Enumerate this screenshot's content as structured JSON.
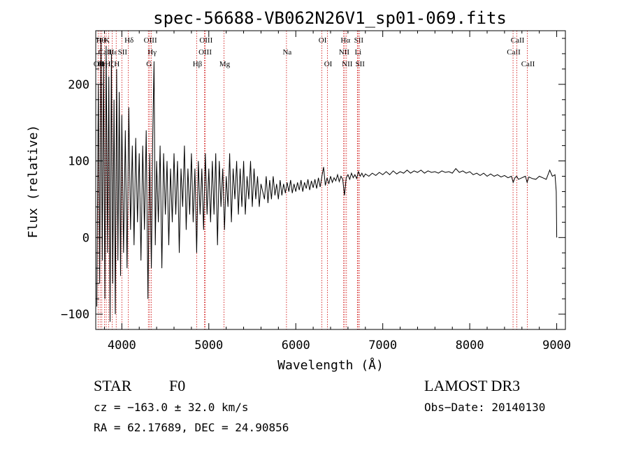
{
  "chart_data": {
    "type": "line",
    "title": "spec-56688-VB062N26V1_sp01-069.fits",
    "xlabel": "Wavelength (Å)",
    "ylabel": "Flux (relative)",
    "xlim": [
      3700,
      9100
    ],
    "ylim": [
      -120,
      270
    ],
    "x_ticks": [
      4000,
      5000,
      6000,
      7000,
      8000,
      9000
    ],
    "x_tick_labels": [
      "4000",
      "5000",
      "6000",
      "7000",
      "8000",
      "9000"
    ],
    "y_ticks": [
      -100,
      0,
      100,
      200
    ],
    "y_tick_labels": [
      "−100",
      "0",
      "100",
      "200"
    ],
    "grid": false,
    "line_color": "#000000",
    "marker_color": "#cc0000",
    "series": [
      {
        "name": "spectrum",
        "points": [
          [
            3712,
            -90
          ],
          [
            3730,
            200
          ],
          [
            3745,
            -60
          ],
          [
            3760,
            260
          ],
          [
            3775,
            -30
          ],
          [
            3790,
            230
          ],
          [
            3805,
            -80
          ],
          [
            3820,
            250
          ],
          [
            3835,
            -20
          ],
          [
            3850,
            210
          ],
          [
            3865,
            -110
          ],
          [
            3880,
            240
          ],
          [
            3895,
            -60
          ],
          [
            3910,
            180
          ],
          [
            3925,
            -100
          ],
          [
            3940,
            220
          ],
          [
            3955,
            -30
          ],
          [
            3970,
            190
          ],
          [
            3985,
            -50
          ],
          [
            4000,
            160
          ],
          [
            4020,
            -20
          ],
          [
            4040,
            140
          ],
          [
            4060,
            -40
          ],
          [
            4080,
            170
          ],
          [
            4100,
            10
          ],
          [
            4120,
            120
          ],
          [
            4140,
            -10
          ],
          [
            4160,
            130
          ],
          [
            4180,
            20
          ],
          [
            4200,
            110
          ],
          [
            4220,
            -30
          ],
          [
            4240,
            120
          ],
          [
            4260,
            10
          ],
          [
            4280,
            140
          ],
          [
            4300,
            -80
          ],
          [
            4320,
            110
          ],
          [
            4340,
            -40
          ],
          [
            4355,
            130
          ],
          [
            4370,
            230
          ],
          [
            4385,
            -10
          ],
          [
            4400,
            100
          ],
          [
            4420,
            20
          ],
          [
            4440,
            120
          ],
          [
            4460,
            -40
          ],
          [
            4480,
            110
          ],
          [
            4500,
            30
          ],
          [
            4520,
            100
          ],
          [
            4540,
            -10
          ],
          [
            4560,
            90
          ],
          [
            4580,
            20
          ],
          [
            4600,
            110
          ],
          [
            4620,
            30
          ],
          [
            4640,
            100
          ],
          [
            4660,
            -20
          ],
          [
            4680,
            90
          ],
          [
            4700,
            40
          ],
          [
            4720,
            120
          ],
          [
            4740,
            10
          ],
          [
            4760,
            90
          ],
          [
            4780,
            30
          ],
          [
            4800,
            110
          ],
          [
            4820,
            20
          ],
          [
            4840,
            90
          ],
          [
            4860,
            -20
          ],
          [
            4880,
            100
          ],
          [
            4900,
            30
          ],
          [
            4920,
            90
          ],
          [
            4940,
            10
          ],
          [
            4960,
            110
          ],
          [
            4980,
            30
          ],
          [
            5000,
            90
          ],
          [
            5020,
            20
          ],
          [
            5040,
            100
          ],
          [
            5060,
            30
          ],
          [
            5080,
            110
          ],
          [
            5100,
            -10
          ],
          [
            5120,
            100
          ],
          [
            5140,
            40
          ],
          [
            5160,
            90
          ],
          [
            5180,
            10
          ],
          [
            5200,
            80
          ],
          [
            5220,
            40
          ],
          [
            5240,
            110
          ],
          [
            5260,
            20
          ],
          [
            5280,
            90
          ],
          [
            5300,
            50
          ],
          [
            5320,
            100
          ],
          [
            5340,
            30
          ],
          [
            5360,
            90
          ],
          [
            5380,
            40
          ],
          [
            5400,
            100
          ],
          [
            5420,
            30
          ],
          [
            5440,
            80
          ],
          [
            5460,
            50
          ],
          [
            5480,
            100
          ],
          [
            5500,
            40
          ],
          [
            5520,
            90
          ],
          [
            5540,
            50
          ],
          [
            5560,
            80
          ],
          [
            5580,
            40
          ],
          [
            5600,
            70
          ],
          [
            5620,
            60
          ],
          [
            5640,
            50
          ],
          [
            5660,
            80
          ],
          [
            5680,
            45
          ],
          [
            5700,
            75
          ],
          [
            5720,
            50
          ],
          [
            5740,
            80
          ],
          [
            5760,
            55
          ],
          [
            5780,
            70
          ],
          [
            5800,
            50
          ],
          [
            5820,
            75
          ],
          [
            5840,
            55
          ],
          [
            5860,
            70
          ],
          [
            5880,
            58
          ],
          [
            5900,
            72
          ],
          [
            5920,
            60
          ],
          [
            5940,
            75
          ],
          [
            5960,
            58
          ],
          [
            5980,
            70
          ],
          [
            6000,
            60
          ],
          [
            6020,
            72
          ],
          [
            6040,
            62
          ],
          [
            6060,
            75
          ],
          [
            6080,
            60
          ],
          [
            6100,
            72
          ],
          [
            6120,
            64
          ],
          [
            6140,
            76
          ],
          [
            6160,
            62
          ],
          [
            6180,
            74
          ],
          [
            6200,
            65
          ],
          [
            6220,
            76
          ],
          [
            6240,
            64
          ],
          [
            6260,
            78
          ],
          [
            6280,
            66
          ],
          [
            6300,
            80
          ],
          [
            6320,
            92
          ],
          [
            6340,
            68
          ],
          [
            6360,
            78
          ],
          [
            6380,
            70
          ],
          [
            6400,
            80
          ],
          [
            6420,
            72
          ],
          [
            6440,
            78
          ],
          [
            6460,
            74
          ],
          [
            6480,
            82
          ],
          [
            6500,
            73
          ],
          [
            6520,
            80
          ],
          [
            6540,
            76
          ],
          [
            6560,
            55
          ],
          [
            6580,
            78
          ],
          [
            6600,
            82
          ],
          [
            6620,
            76
          ],
          [
            6640,
            84
          ],
          [
            6660,
            78
          ],
          [
            6680,
            82
          ],
          [
            6700,
            77
          ],
          [
            6720,
            86
          ],
          [
            6740,
            80
          ],
          [
            6760,
            84
          ],
          [
            6780,
            79
          ],
          [
            6800,
            83
          ],
          [
            6840,
            80
          ],
          [
            6880,
            84
          ],
          [
            6920,
            81
          ],
          [
            6960,
            85
          ],
          [
            7000,
            82
          ],
          [
            7040,
            86
          ],
          [
            7080,
            82
          ],
          [
            7120,
            87
          ],
          [
            7160,
            83
          ],
          [
            7200,
            86
          ],
          [
            7240,
            84
          ],
          [
            7280,
            88
          ],
          [
            7320,
            84
          ],
          [
            7360,
            87
          ],
          [
            7400,
            85
          ],
          [
            7440,
            88
          ],
          [
            7480,
            84
          ],
          [
            7520,
            87
          ],
          [
            7560,
            85
          ],
          [
            7600,
            86
          ],
          [
            7640,
            84
          ],
          [
            7680,
            87
          ],
          [
            7720,
            85
          ],
          [
            7760,
            86
          ],
          [
            7800,
            84
          ],
          [
            7840,
            90
          ],
          [
            7880,
            85
          ],
          [
            7920,
            87
          ],
          [
            7960,
            84
          ],
          [
            8000,
            86
          ],
          [
            8040,
            82
          ],
          [
            8080,
            84
          ],
          [
            8120,
            81
          ],
          [
            8160,
            84
          ],
          [
            8200,
            80
          ],
          [
            8240,
            83
          ],
          [
            8280,
            80
          ],
          [
            8320,
            82
          ],
          [
            8360,
            79
          ],
          [
            8400,
            81
          ],
          [
            8440,
            78
          ],
          [
            8480,
            80
          ],
          [
            8500,
            72
          ],
          [
            8520,
            78
          ],
          [
            8540,
            80
          ],
          [
            8560,
            76
          ],
          [
            8600,
            78
          ],
          [
            8640,
            80
          ],
          [
            8660,
            72
          ],
          [
            8680,
            79
          ],
          [
            8720,
            77
          ],
          [
            8760,
            76
          ],
          [
            8800,
            80
          ],
          [
            8840,
            78
          ],
          [
            8880,
            76
          ],
          [
            8920,
            88
          ],
          [
            8950,
            80
          ],
          [
            8980,
            82
          ],
          [
            8995,
            60
          ],
          [
            9000,
            0
          ]
        ]
      }
    ],
    "line_markers": [
      {
        "name": "OII",
        "x": 3727,
        "row": 3
      },
      {
        "name": "Hθ",
        "x": 3750,
        "row": 1
      },
      {
        "name": "Hη",
        "x": 3770,
        "row": 3
      },
      {
        "name": "CaII",
        "x": 3800,
        "row": 2
      },
      {
        "name": "K",
        "x": 3820,
        "row": 1
      },
      {
        "name": "Hζ",
        "x": 3850,
        "row": 3
      },
      {
        "name": "Hε",
        "x": 3890,
        "row": 2
      },
      {
        "name": "H",
        "x": 3935,
        "row": 3
      },
      {
        "name": "SII",
        "x": 4000,
        "row": 2
      },
      {
        "name": "Hδ",
        "x": 4075,
        "row": 1
      },
      {
        "name": "OIII",
        "x": 4320,
        "row": 1
      },
      {
        "name": "Hγ",
        "x": 4340,
        "row": 2
      },
      {
        "name": "G",
        "x": 4305,
        "row": 3
      },
      {
        "name": "Hβ",
        "x": 4861,
        "row": 3
      },
      {
        "name": "OIII",
        "x": 4960,
        "row": 1
      },
      {
        "name": "OIII",
        "x": 4950,
        "row": 2
      },
      {
        "name": "Mg",
        "x": 5175,
        "row": 3
      },
      {
        "name": "Na",
        "x": 5893,
        "row": 2
      },
      {
        "name": "OI",
        "x": 6300,
        "row": 1
      },
      {
        "name": "OI",
        "x": 6364,
        "row": 3
      },
      {
        "name": "Hα",
        "x": 6563,
        "row": 1
      },
      {
        "name": "NII",
        "x": 6548,
        "row": 2
      },
      {
        "name": "NII",
        "x": 6583,
        "row": 3
      },
      {
        "name": "SII",
        "x": 6716,
        "row": 1
      },
      {
        "name": "Li",
        "x": 6708,
        "row": 2
      },
      {
        "name": "SII",
        "x": 6731,
        "row": 3
      },
      {
        "name": "CaII",
        "x": 8498,
        "row": 2
      },
      {
        "name": "CaII",
        "x": 8542,
        "row": 1
      },
      {
        "name": "CaII",
        "x": 8662,
        "row": 3
      }
    ]
  },
  "info": {
    "object_type": "STAR",
    "subclass": "F0",
    "survey": "LAMOST DR3",
    "cz": "cz = −163.0 ± 32.0 km/s",
    "obs_date": "Obs−Date: 20140130",
    "coords": "RA =  62.17689, DEC =  24.90856"
  }
}
